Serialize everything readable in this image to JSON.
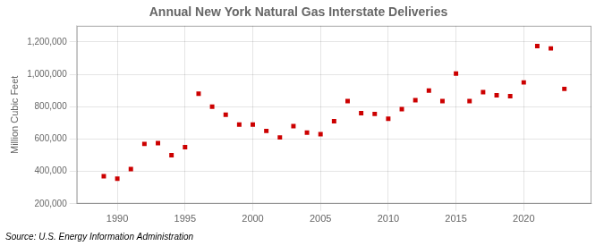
{
  "chart_data": {
    "type": "scatter",
    "title": "Annual New York Natural Gas Interstate Deliveries",
    "y_label": "Million Cubic Feet",
    "annotations": [
      "Source: U.S. Energy Information Administration"
    ],
    "x": [
      1989,
      1990,
      1991,
      1992,
      1993,
      1994,
      1995,
      1996,
      1997,
      1998,
      1999,
      2000,
      2001,
      2002,
      2003,
      2004,
      2005,
      2006,
      2007,
      2008,
      2009,
      2010,
      2011,
      2012,
      2013,
      2014,
      2015,
      2016,
      2017,
      2018,
      2019,
      2020,
      2021,
      2022,
      2023
    ],
    "values": [
      370000,
      355000,
      415000,
      570000,
      575000,
      500000,
      550000,
      880000,
      800000,
      750000,
      690000,
      690000,
      650000,
      610000,
      680000,
      640000,
      630000,
      710000,
      835000,
      760000,
      755000,
      725000,
      785000,
      840000,
      900000,
      835000,
      1005000,
      835000,
      890000,
      870000,
      865000,
      950000,
      1175000,
      1160000,
      910000
    ],
    "color": "#cc0000",
    "marker": "square",
    "xlim": [
      1987,
      2025
    ],
    "xticks": [
      1990,
      1995,
      2000,
      2005,
      2010,
      2015,
      2020
    ],
    "ylim": [
      200000,
      1300000
    ],
    "yticks": [
      {
        "value": 200000,
        "label": "200,000"
      },
      {
        "value": 400000,
        "label": "400,000"
      },
      {
        "value": 600000,
        "label": "600,000"
      },
      {
        "value": 800000,
        "label": "800,000"
      },
      {
        "value": 1000000,
        "label": "1,000,000"
      },
      {
        "value": 1200000,
        "label": "1,200,000"
      }
    ],
    "grid": true
  }
}
